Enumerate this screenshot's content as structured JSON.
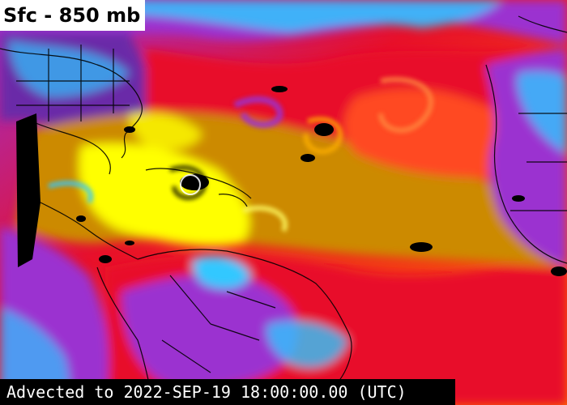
{
  "title": "Sfc - 850 mb",
  "timestamp": "Advected to 2022-SEP-19 18:00:00.00 (UTC)",
  "colors": {
    "very_moist": "#ffff00",
    "moist": "#cc8a00",
    "moderate": "#ff6600",
    "dry": "#e8102a",
    "very_dry": "#9b30d0",
    "driest": "#30c8ff",
    "no_data": "#000000",
    "coastline": "#000000"
  }
}
